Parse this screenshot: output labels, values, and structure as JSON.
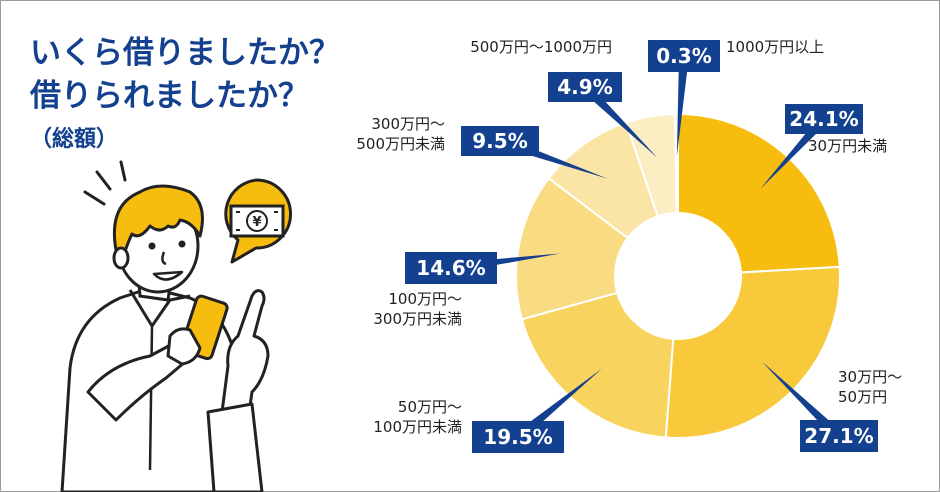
{
  "header": {
    "title_line1": "いくら借りましたか？",
    "title_line2": "借りられましたか？",
    "subtitle": "（総額）"
  },
  "illustration": {
    "banknote_symbol": "¥"
  },
  "chart_data": {
    "type": "pie",
    "donut": true,
    "title": "いくら借りましたか？借りられましたか？（総額）",
    "unit": "%",
    "categories": [
      "30万円未満",
      "30万円～50万円",
      "50万円～100万円未満",
      "100万円～300万円未満",
      "300万円～500万円未満",
      "500万円～1000万円",
      "1000万円以上"
    ],
    "values": [
      24.1,
      27.1,
      19.5,
      14.6,
      9.5,
      4.9,
      0.3
    ],
    "value_labels": [
      "24.1%",
      "27.1%",
      "19.5%",
      "14.6%",
      "9.5%",
      "4.9%",
      "0.3%"
    ],
    "label_lines": [
      [
        "30万円未満"
      ],
      [
        "30万円～",
        "50万円"
      ],
      [
        "50万円～",
        "100万円未満"
      ],
      [
        "100万円～",
        "300万円未満"
      ],
      [
        "300万円～",
        "500万円未満"
      ],
      [
        "500万円～1000万円"
      ],
      [
        "1000万円以上"
      ]
    ],
    "colors": [
      "#f6bd0e",
      "#f8c93b",
      "#f8d35e",
      "#f9dc82",
      "#fbe5a6",
      "#fcedc2",
      "#fdf4d8"
    ],
    "callout_color": "#13408f"
  }
}
